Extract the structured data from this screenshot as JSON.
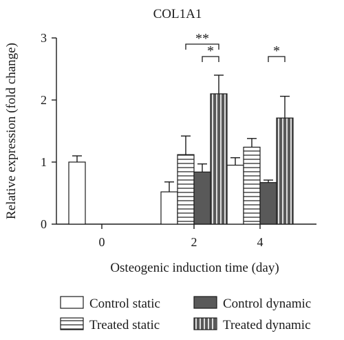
{
  "chart_data": {
    "type": "bar",
    "title": "COL1A1",
    "xlabel": "Osteogenic induction time (day)",
    "ylabel": "Relative expression (fold change)",
    "ylim": [
      0,
      3
    ],
    "yticks": [
      "0",
      "1",
      "2",
      "3"
    ],
    "categories": [
      "0",
      "2",
      "4"
    ],
    "series": [
      {
        "name": "Control static",
        "pattern": "white",
        "values": [
          1.0,
          0.52,
          0.95
        ],
        "errors": [
          0.1,
          0.16,
          0.12
        ]
      },
      {
        "name": "Treated static",
        "pattern": "horizontal",
        "values": [
          null,
          1.12,
          1.24
        ],
        "errors": [
          null,
          0.3,
          0.14
        ]
      },
      {
        "name": "Control dynamic",
        "pattern": "dark",
        "values": [
          null,
          0.84,
          0.67
        ],
        "errors": [
          null,
          0.13,
          0.04
        ]
      },
      {
        "name": "Treated dynamic",
        "pattern": "vertical",
        "values": [
          null,
          2.1,
          1.71
        ],
        "errors": [
          null,
          0.3,
          0.35
        ]
      }
    ],
    "significance": [
      {
        "label": "**",
        "category": "2",
        "from": "Treated static",
        "to": "Treated dynamic",
        "y": 2.9
      },
      {
        "label": "*",
        "category": "2",
        "from": "Control dynamic",
        "to": "Treated dynamic",
        "y": 2.7
      },
      {
        "label": "*",
        "category": "4",
        "from": "Control dynamic",
        "to": "Treated dynamic",
        "y": 2.7
      }
    ],
    "legend": {
      "placement": "bottom",
      "columns": [
        [
          "Control static",
          "Treated static"
        ],
        [
          "Control dynamic",
          "Treated dynamic"
        ]
      ]
    },
    "colors": {
      "dark_fill": "#595959",
      "outline": "#1a1a1a",
      "background": "#ffffff"
    }
  }
}
